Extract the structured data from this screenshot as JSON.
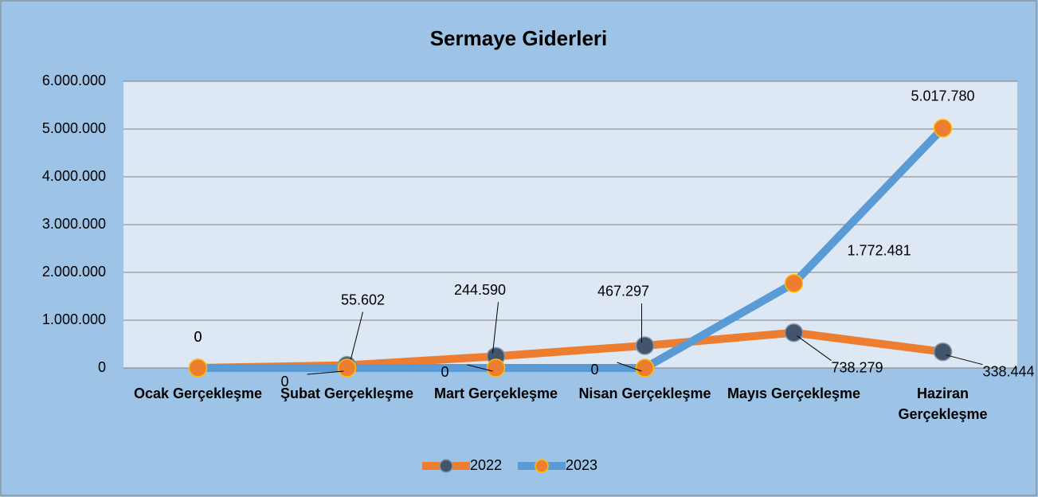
{
  "chart_data": {
    "type": "line",
    "title": "Sermaye Giderleri",
    "categories": [
      "Ocak Gerçekleşme",
      "Şubat Gerçekleşme",
      "Mart Gerçekleşme",
      "Nisan Gerçekleşme",
      "Mayıs Gerçekleşme",
      "Haziran Gerçekleşme"
    ],
    "series": [
      {
        "name": "2022",
        "color": "#ed7d31",
        "marker_color": "#44546a",
        "values": [
          0,
          55602,
          244590,
          467297,
          738279,
          338444
        ],
        "value_labels": [
          "0",
          "55.602",
          "244.590",
          "467.297",
          "738.279",
          "338.444"
        ]
      },
      {
        "name": "2023",
        "color": "#5b9bd5",
        "marker_color": "#ed7d31",
        "values": [
          0,
          0,
          0,
          0,
          1772481,
          5017780
        ],
        "value_labels": [
          "0",
          "0",
          "0",
          "0",
          "1.772.481",
          "5.017.780"
        ]
      }
    ],
    "ylim": [
      0,
      6000000
    ],
    "yticks": [
      0,
      {
        "value": 1000000,
        "label": "1.000.000"
      },
      {
        "value": 2000000,
        "label": "2.000.000"
      },
      {
        "value": 3000000,
        "label": "3.000.000"
      },
      {
        "value": 4000000,
        "label": "4.000.000"
      },
      {
        "value": 5000000,
        "label": "5.000.000"
      },
      {
        "value": 6000000,
        "label": "6.000.000"
      }
    ],
    "grid": true,
    "legend": "bottom"
  }
}
